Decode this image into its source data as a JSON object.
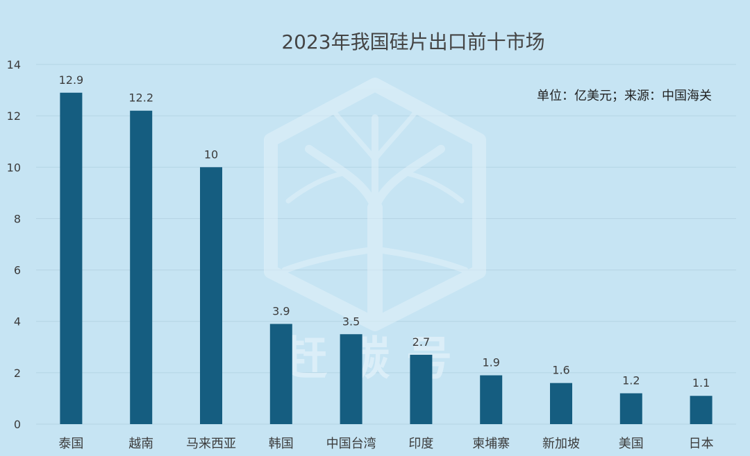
{
  "chart_data": {
    "type": "bar",
    "title": "2023年我国硅片出口前十市场",
    "annotation": "单位：亿美元；来源：中国海关",
    "watermark_text": "赶碳号",
    "xlabel": "",
    "ylabel": "",
    "categories": [
      "泰国",
      "越南",
      "马来西亚",
      "韩国",
      "中国台湾",
      "印度",
      "柬埔寨",
      "新加坡",
      "美国",
      "日本"
    ],
    "values": [
      12.9,
      12.2,
      10,
      3.9,
      3.5,
      2.7,
      1.9,
      1.6,
      1.2,
      1.1
    ],
    "value_labels": [
      "12.9",
      "12.2",
      "10",
      "3.9",
      "3.5",
      "2.7",
      "1.9",
      "1.6",
      "1.2",
      "1.1"
    ],
    "ylim": [
      0,
      14
    ],
    "yticks": [
      "0",
      "2",
      "4",
      "6",
      "8",
      "10",
      "12",
      "14"
    ],
    "grid": true,
    "colors": {
      "background": "#c6e4f3",
      "bar": "#155d80",
      "text": "#3b3b3b",
      "grid": "#b4d3e3",
      "watermark": "#e3f2fa"
    }
  }
}
